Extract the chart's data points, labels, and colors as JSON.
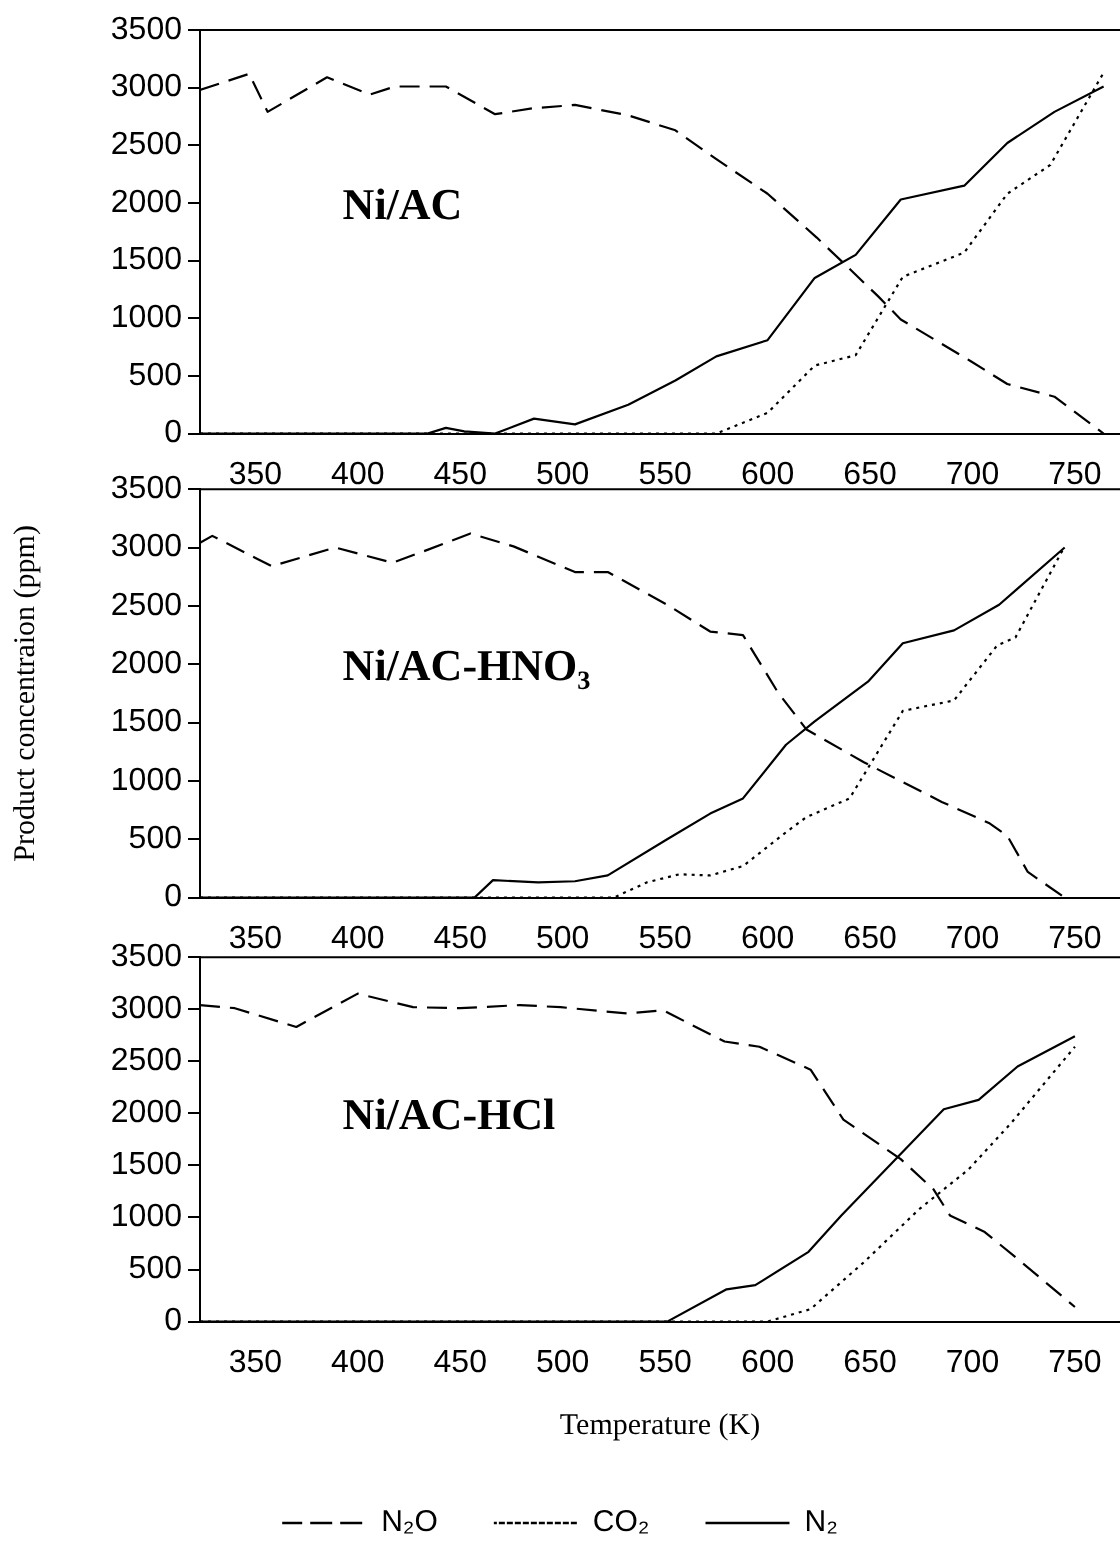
{
  "chart_data": [
    {
      "type": "line",
      "annotations": [
        "Ni/AC"
      ],
      "xlim": [
        323,
        772
      ],
      "xticks": [
        350,
        400,
        450,
        500,
        550,
        600,
        650,
        700,
        750
      ],
      "ylim": [
        0,
        3500
      ],
      "yticks": [
        0,
        500,
        1000,
        1500,
        2000,
        2500,
        3000,
        3500
      ],
      "grid": false,
      "legend": false,
      "marker": "none",
      "series": [
        {
          "color": "#000000",
          "line_style": "dashed",
          "x": [
            323,
            347,
            356,
            385,
            406,
            418,
            443,
            467,
            485,
            506,
            532,
            555,
            575,
            600,
            624,
            637,
            654,
            665,
            699,
            717,
            740,
            764
          ],
          "values": [
            2980,
            3120,
            2790,
            3090,
            2940,
            3010,
            3010,
            2770,
            2820,
            2850,
            2760,
            2630,
            2380,
            2080,
            1700,
            1480,
            1190,
            990,
            630,
            430,
            320,
            0
          ]
        },
        {
          "color": "#000000",
          "line_style": "dotted",
          "x": [
            323,
            575,
            600,
            623,
            643,
            666,
            696,
            717,
            738,
            764
          ],
          "values": [
            0,
            0,
            180,
            590,
            680,
            1360,
            1570,
            2080,
            2330,
            3130
          ]
        },
        {
          "color": "#000000",
          "line_style": "solid",
          "x": [
            323,
            434,
            443,
            452,
            467,
            486,
            506,
            532,
            555,
            575,
            600,
            623,
            643,
            665,
            696,
            717,
            740,
            764
          ],
          "values": [
            0,
            0,
            50,
            20,
            0,
            130,
            80,
            250,
            460,
            670,
            810,
            1350,
            1550,
            2030,
            2150,
            2520,
            2790,
            3010
          ]
        }
      ]
    },
    {
      "type": "line",
      "ylabel": "Product concentraion (ppm)",
      "annotations": [
        "Ni/AC-HNO₃"
      ],
      "xlim": [
        323,
        772
      ],
      "xticks": [
        350,
        400,
        450,
        500,
        550,
        600,
        650,
        700,
        750
      ],
      "ylim": [
        0,
        3500
      ],
      "yticks": [
        0,
        500,
        1000,
        1500,
        2000,
        2500,
        3000,
        3500
      ],
      "grid": false,
      "legend": false,
      "marker": "none",
      "series": [
        {
          "color": "#000000",
          "line_style": "dashed",
          "x": [
            323,
            329,
            358,
            389,
            417,
            434,
            455,
            476,
            506,
            522,
            551,
            572,
            588,
            605,
            619,
            647,
            685,
            708,
            717,
            727,
            745
          ],
          "values": [
            3040,
            3100,
            2840,
            3000,
            2870,
            2980,
            3120,
            3010,
            2790,
            2790,
            2510,
            2280,
            2250,
            1760,
            1440,
            1160,
            820,
            640,
            530,
            220,
            0
          ]
        },
        {
          "color": "#000000",
          "line_style": "dotted",
          "x": [
            323,
            525,
            541,
            557,
            572,
            588,
            609,
            619,
            640,
            666,
            691,
            712,
            721,
            745
          ],
          "values": [
            0,
            0,
            130,
            200,
            190,
            270,
            560,
            690,
            850,
            1600,
            1690,
            2160,
            2230,
            3010
          ]
        },
        {
          "color": "#000000",
          "line_style": "solid",
          "x": [
            323,
            457,
            466,
            488,
            506,
            522,
            551,
            572,
            588,
            609,
            623,
            649,
            666,
            691,
            713,
            745
          ],
          "values": [
            0,
            0,
            150,
            130,
            140,
            190,
            500,
            720,
            850,
            1310,
            1510,
            1850,
            2180,
            2290,
            2510,
            3000
          ]
        }
      ]
    },
    {
      "type": "line",
      "xlabel": "Temperature (K)",
      "annotations": [
        "Ni/AC-HCl"
      ],
      "xlim": [
        323,
        772
      ],
      "xticks": [
        350,
        400,
        450,
        500,
        550,
        600,
        650,
        700,
        750
      ],
      "ylim": [
        0,
        3500
      ],
      "yticks": [
        0,
        500,
        1000,
        1500,
        2000,
        2500,
        3000,
        3500
      ],
      "grid": false,
      "legend": "bottom",
      "marker": "none",
      "series": [
        {
          "name": "N₂O",
          "color": "#000000",
          "line_style": "dashed",
          "x": [
            323,
            340,
            370,
            400,
            427,
            450,
            479,
            499,
            520,
            532,
            549,
            579,
            596,
            621,
            637,
            665,
            681,
            689,
            706,
            724,
            750
          ],
          "values": [
            3040,
            3010,
            2830,
            3150,
            3020,
            3010,
            3040,
            3020,
            2980,
            2960,
            2990,
            2690,
            2640,
            2420,
            1940,
            1560,
            1270,
            1020,
            860,
            570,
            140
          ]
        },
        {
          "name": "CO₂",
          "color": "#000000",
          "line_style": "dotted",
          "x": [
            323,
            600,
            621,
            647,
            674,
            698,
            719,
            750
          ],
          "values": [
            0,
            0,
            120,
            570,
            1080,
            1460,
            1910,
            2640
          ]
        },
        {
          "name": "N₂",
          "color": "#000000",
          "line_style": "solid",
          "x": [
            323,
            551,
            580,
            594,
            620,
            636,
            686,
            703,
            722,
            750
          ],
          "values": [
            0,
            0,
            310,
            350,
            670,
            1020,
            2040,
            2130,
            2450,
            2740
          ]
        }
      ]
    }
  ]
}
